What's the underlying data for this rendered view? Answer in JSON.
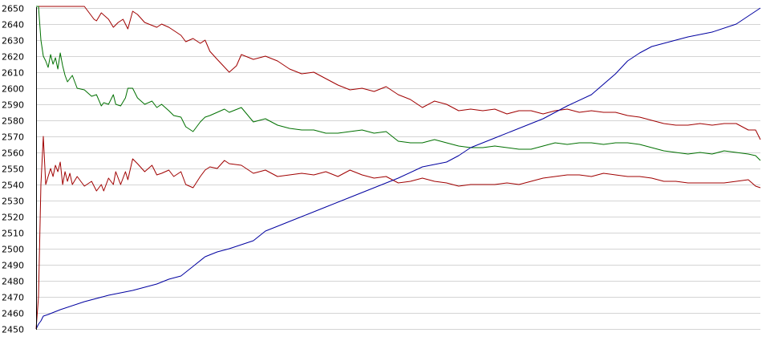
{
  "chart_data": {
    "type": "line",
    "title": "",
    "xlabel": "",
    "ylabel": "",
    "ylim": [
      2450,
      2650
    ],
    "xlim": [
      0,
      300
    ],
    "grid": true,
    "y_ticks": [
      "2450",
      "2460",
      "2470",
      "2480",
      "2490",
      "2500",
      "2510",
      "2520",
      "2530",
      "2540",
      "2550",
      "2560",
      "2570",
      "2580",
      "2590",
      "2600",
      "2610",
      "2620",
      "2630",
      "2640",
      "2650"
    ],
    "colors": {
      "upper": "#a00000",
      "middle": "#007000",
      "lower": "#a00000",
      "rising": "#0000a0",
      "grid": "#d4d4d4"
    },
    "series": [
      {
        "id": "upper",
        "x": [
          0,
          1,
          2,
          10,
          20,
          21,
          24,
          25,
          27,
          30,
          32,
          34,
          36,
          38,
          40,
          42,
          45,
          50,
          52,
          55,
          57,
          60,
          62,
          65,
          68,
          70,
          72,
          75,
          80,
          83,
          85,
          90,
          95,
          100,
          105,
          110,
          115,
          120,
          125,
          130,
          135,
          140,
          145,
          150,
          155,
          160,
          165,
          170,
          175,
          180,
          185,
          190,
          195,
          200,
          205,
          210,
          215,
          220,
          225,
          230,
          235,
          240,
          245,
          250,
          255,
          260,
          265,
          270,
          275,
          280,
          285,
          290,
          295,
          298,
          300
        ],
        "y": [
          2651,
          2651,
          2651,
          2651,
          2651,
          2649,
          2643,
          2642,
          2647,
          2643,
          2638,
          2641,
          2643,
          2637,
          2648,
          2646,
          2641,
          2638,
          2640,
          2638,
          2636,
          2633,
          2629,
          2631,
          2628,
          2630,
          2623,
          2618,
          2610,
          2614,
          2621,
          2618,
          2620,
          2617,
          2612,
          2609,
          2610,
          2606,
          2602,
          2599,
          2600,
          2598,
          2601,
          2596,
          2593,
          2588,
          2592,
          2590,
          2586,
          2587,
          2586,
          2587,
          2584,
          2586,
          2586,
          2584,
          2586,
          2587,
          2585,
          2586,
          2585,
          2585,
          2583,
          2582,
          2580,
          2578,
          2577,
          2577,
          2578,
          2577,
          2578,
          2578,
          2574,
          2574,
          2568
        ]
      },
      {
        "id": "middle",
        "x": [
          0,
          1,
          2,
          3,
          4,
          5,
          6,
          7,
          8,
          9,
          10,
          11,
          12,
          13,
          14,
          15,
          17,
          20,
          23,
          25,
          27,
          28,
          30,
          32,
          33,
          35,
          37,
          38,
          40,
          42,
          45,
          48,
          50,
          52,
          55,
          57,
          60,
          62,
          65,
          68,
          70,
          72,
          75,
          78,
          80,
          85,
          90,
          95,
          100,
          105,
          110,
          115,
          120,
          125,
          130,
          135,
          140,
          145,
          150,
          155,
          160,
          165,
          170,
          175,
          180,
          185,
          190,
          195,
          200,
          205,
          210,
          215,
          220,
          225,
          230,
          235,
          240,
          245,
          250,
          255,
          260,
          265,
          270,
          275,
          280,
          285,
          290,
          295,
          298,
          300
        ],
        "y": [
          2651,
          2651,
          2630,
          2620,
          2617,
          2613,
          2621,
          2615,
          2619,
          2612,
          2622,
          2614,
          2608,
          2604,
          2606,
          2608,
          2600,
          2599,
          2595,
          2596,
          2589,
          2591,
          2590,
          2596,
          2590,
          2589,
          2594,
          2600,
          2600,
          2594,
          2590,
          2592,
          2588,
          2590,
          2586,
          2583,
          2582,
          2576,
          2573,
          2579,
          2582,
          2583,
          2585,
          2587,
          2585,
          2588,
          2579,
          2581,
          2577,
          2575,
          2574,
          2574,
          2572,
          2572,
          2573,
          2574,
          2572,
          2573,
          2567,
          2566,
          2566,
          2568,
          2566,
          2564,
          2563,
          2563,
          2564,
          2563,
          2562,
          2562,
          2564,
          2566,
          2565,
          2566,
          2566,
          2565,
          2566,
          2566,
          2565,
          2563,
          2561,
          2560,
          2559,
          2560,
          2559,
          2561,
          2560,
          2559,
          2558,
          2555
        ]
      },
      {
        "id": "lower",
        "x": [
          0,
          1,
          2,
          3,
          4,
          5,
          6,
          7,
          8,
          9,
          10,
          11,
          12,
          13,
          14,
          15,
          17,
          20,
          23,
          25,
          27,
          28,
          30,
          32,
          33,
          35,
          37,
          38,
          40,
          42,
          45,
          48,
          50,
          52,
          55,
          57,
          60,
          62,
          65,
          68,
          70,
          72,
          75,
          78,
          80,
          85,
          90,
          95,
          100,
          105,
          110,
          115,
          120,
          125,
          130,
          135,
          140,
          145,
          150,
          155,
          160,
          165,
          170,
          175,
          180,
          185,
          190,
          195,
          200,
          205,
          210,
          215,
          220,
          225,
          230,
          235,
          240,
          245,
          250,
          255,
          260,
          265,
          270,
          275,
          280,
          285,
          290,
          295,
          298,
          300
        ],
        "y": [
          2450,
          2470,
          2540,
          2570,
          2540,
          2545,
          2550,
          2545,
          2552,
          2548,
          2554,
          2540,
          2548,
          2542,
          2547,
          2540,
          2545,
          2539,
          2542,
          2536,
          2540,
          2536,
          2544,
          2540,
          2548,
          2540,
          2548,
          2543,
          2556,
          2553,
          2548,
          2552,
          2546,
          2547,
          2549,
          2545,
          2548,
          2540,
          2538,
          2545,
          2549,
          2551,
          2550,
          2555,
          2553,
          2552,
          2547,
          2549,
          2545,
          2546,
          2547,
          2546,
          2548,
          2545,
          2549,
          2546,
          2544,
          2545,
          2541,
          2542,
          2544,
          2542,
          2541,
          2539,
          2540,
          2540,
          2540,
          2541,
          2540,
          2542,
          2544,
          2545,
          2546,
          2546,
          2545,
          2547,
          2546,
          2545,
          2545,
          2544,
          2542,
          2542,
          2541,
          2541,
          2541,
          2541,
          2542,
          2543,
          2539,
          2538
        ]
      },
      {
        "id": "rising",
        "x": [
          0,
          1,
          2,
          3,
          5,
          10,
          20,
          30,
          40,
          50,
          55,
          60,
          65,
          70,
          75,
          80,
          90,
          95,
          100,
          105,
          110,
          120,
          130,
          140,
          150,
          160,
          170,
          175,
          180,
          190,
          200,
          210,
          220,
          230,
          240,
          245,
          250,
          255,
          260,
          265,
          270,
          280,
          290,
          295,
          300
        ],
        "y": [
          2450,
          2453,
          2455,
          2458,
          2459,
          2462,
          2467,
          2471,
          2474,
          2478,
          2481,
          2483,
          2489,
          2495,
          2498,
          2500,
          2505,
          2511,
          2514,
          2517,
          2520,
          2526,
          2532,
          2538,
          2544,
          2551,
          2554,
          2558,
          2563,
          2569,
          2575,
          2581,
          2589,
          2596,
          2609,
          2617,
          2622,
          2626,
          2628,
          2630,
          2632,
          2635,
          2640,
          2645,
          2650
        ]
      }
    ]
  }
}
